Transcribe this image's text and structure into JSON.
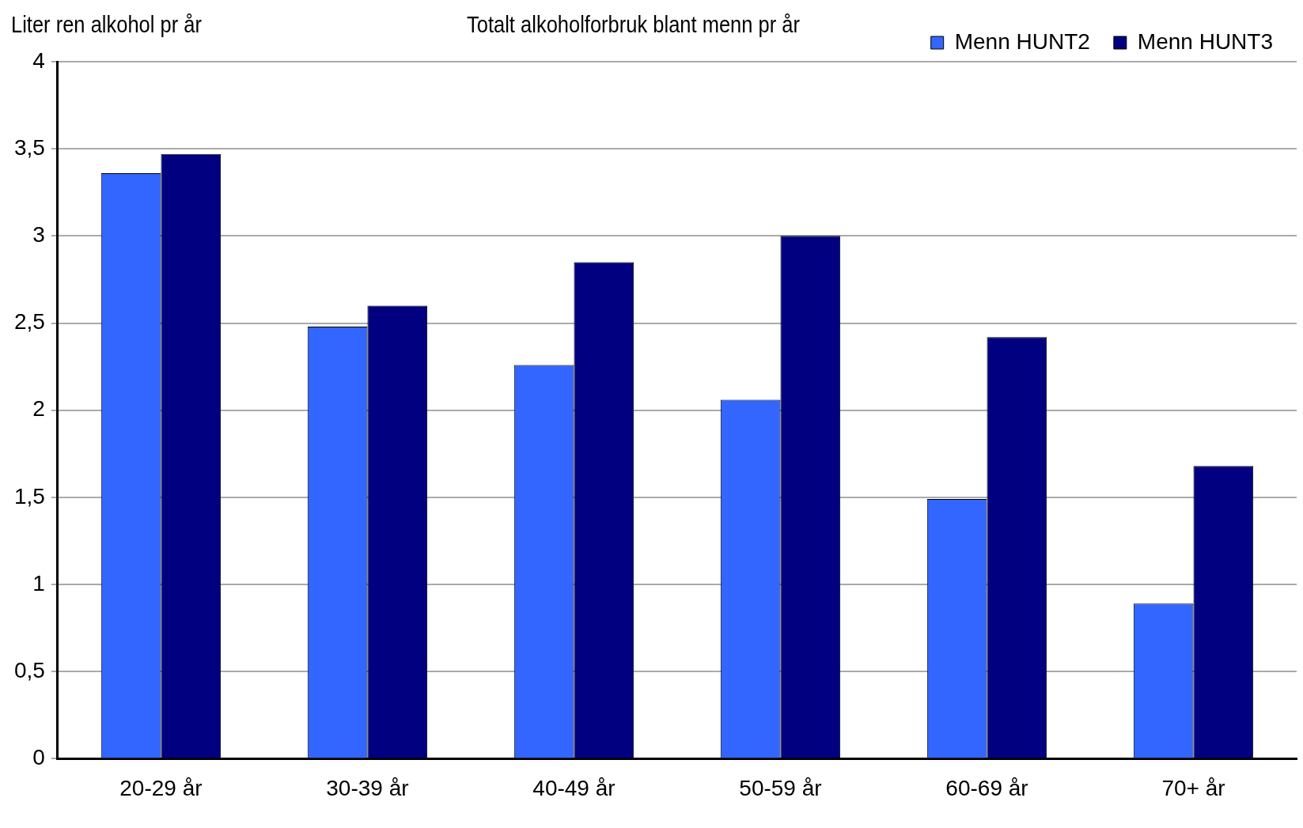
{
  "chart_data": {
    "type": "bar",
    "title": "Totalt alkoholforbruk blant menn pr år",
    "ylabel": "Liter ren alkohol pr år",
    "categories": [
      "20-29 år",
      "30-39 år",
      "40-49 år",
      "50-59 år",
      "60-69 år",
      "70+ år"
    ],
    "series": [
      {
        "name": "Menn HUNT2",
        "color": "#3366ff",
        "values": [
          3.36,
          2.48,
          2.26,
          2.06,
          1.49,
          0.89
        ]
      },
      {
        "name": "Menn HUNT3",
        "color": "#000080",
        "values": [
          3.47,
          2.6,
          2.85,
          3.0,
          2.42,
          1.68
        ]
      }
    ],
    "ylim": [
      0,
      4
    ],
    "yticks": [
      0,
      {
        "value": 0.5,
        "label": "0,5"
      },
      1,
      {
        "value": 1.5,
        "label": "1,5"
      },
      2,
      {
        "value": 2.5,
        "label": "2,5"
      },
      3,
      {
        "value": 3.5,
        "label": "3,5"
      },
      4
    ],
    "grid": "y",
    "legend": "top right"
  }
}
